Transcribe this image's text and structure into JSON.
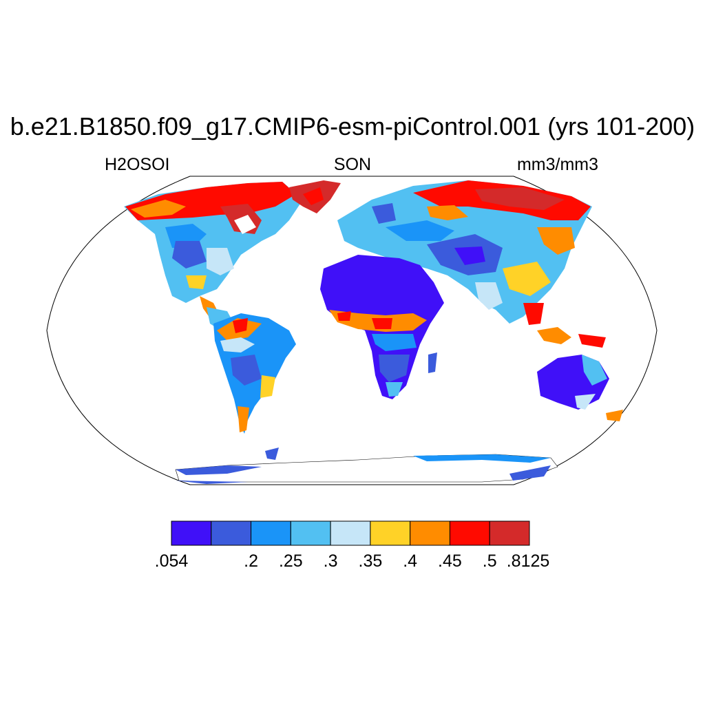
{
  "title": "b.e21.B1850.f09_g17.CMIP6-esm-piControl.001 (yrs 101-200)",
  "variable": "H2OSOI",
  "season": "SON",
  "units": "mm3/mm3",
  "colorbar": {
    "colors": [
      "#4010f8",
      "#3b5bdc",
      "#1a94f8",
      "#52c0f2",
      "#c6e6f8",
      "#ffd227",
      "#ff8c00",
      "#ff0a00",
      "#d42a2a"
    ],
    "labels": [
      ".054",
      ".2",
      ".25",
      ".3",
      ".35",
      ".4",
      ".45",
      ".5",
      ".8125"
    ]
  }
}
